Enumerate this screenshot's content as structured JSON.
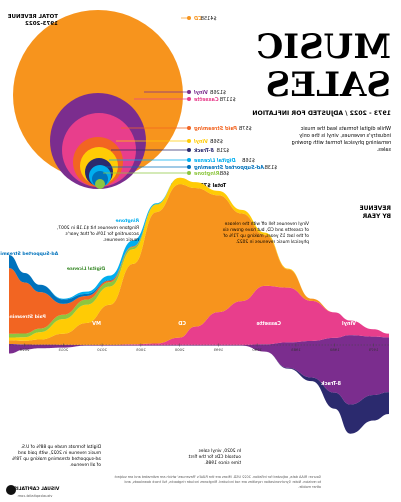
{
  "title": {
    "main": "MUSIC SALES",
    "subtitle": "1973 - 2022",
    "subtitle_sep": "/",
    "subtitle_note": "ADJUSTED FOR INFLATION",
    "intro": "While digital formats lead the music industry's revenues, vinyl is the only remaining physical format with growing sales."
  },
  "top_chart": {
    "label": "TOTAL REVENUE",
    "years": "1973-2022",
    "total_label": "Total",
    "total_value": "$774B",
    "bubbles": [
      {
        "name": "CD",
        "value": "$415B",
        "color": "#f7941d"
      },
      {
        "name": "Vinyl",
        "value": "$126B",
        "color": "#7b2d8e"
      },
      {
        "name": "Cassette",
        "value": "$117B",
        "color": "#e83e8c"
      },
      {
        "name": "Paid Streaming",
        "value": "$57B",
        "color": "#f26522"
      },
      {
        "name": "Vinyl",
        "value": "$56B",
        "color": "#ffcb05"
      },
      {
        "name": "8-Track",
        "value": "$21B",
        "color": "#2b2a6e"
      },
      {
        "name": "Digital License",
        "value": "$16B",
        "color": "#00aeef"
      },
      {
        "name": "Ad-Supported Streaming",
        "value": "$13B",
        "color": "#0072bc"
      },
      {
        "name": "Ringtone",
        "value": "$6B",
        "color": "#8dc63f"
      }
    ]
  },
  "stream_chart": {
    "label": "REVENUE",
    "label2": "BY YEAR",
    "colors": {
      "Vinyl": "#7b2d8e",
      "8-Track": "#2b2a6e",
      "Cassette": "#e83e8c",
      "CD": "#f7941d",
      "Other": "#ffcb05",
      "Digital": "#8dc63f",
      "Paid": "#f26522",
      "Ad": "#0072bc",
      "Sync": "#00aeef"
    },
    "x_ticks": [
      "1975",
      "1980",
      "1985",
      "1990",
      "1995",
      "2000",
      "2005",
      "2010",
      "2015",
      "2020"
    ],
    "labels": [
      {
        "text": "Vinyl"
      },
      {
        "text": "Cassette"
      },
      {
        "text": "8-Track"
      },
      {
        "text": "CD"
      },
      {
        "text": "MV"
      },
      {
        "text": "Paid Streaming"
      },
      {
        "text": "Ad-Supported Streaming"
      },
      {
        "text": "Digital License"
      },
      {
        "text": "Ringtone"
      }
    ],
    "annotations": [
      {
        "text": "Vinyl revenues fell off with the release of cassette and CD, but have grown six of the last 15 years, making up 71% of physical music revenues in 2022."
      },
      {
        "text": "Ringtone revenues hit $1.1B in 2007, accounting for 10% of that year's music revenues."
      },
      {
        "text": "In 2020, vinyl sales outsold CDs for the first time since 1986."
      },
      {
        "text": "Digital formats made up 88% of U.S. music revenue in 2022, with paid and ad-supported streaming making up 78% of all revenue."
      }
    ]
  },
  "footer": {
    "source": "Source: RIAA data, adjusted for inflation. 2022 USD. Mixes are the RIAA's 'Revenues' which are estimated and are subject to revision. Note: Synchronization royalties are not included. Ringtones include ringbacks, full track downloads, and other mobile.",
    "brand": "VISUAL CAPITALIST",
    "url": "visualcapitalist.com"
  },
  "chart_data": [
    {
      "type": "bubble",
      "title": "TOTAL REVENUE 1973-2022",
      "categories": [
        "CD",
        "Vinyl",
        "Cassette",
        "Paid Streaming",
        "Vinyl",
        "8-Track",
        "Digital License",
        "Ad-Supported Streaming",
        "Ringtone"
      ],
      "values": [
        415,
        126,
        117,
        57,
        56,
        21,
        16,
        13,
        6
      ],
      "unit": "$B",
      "total": 774
    },
    {
      "type": "area",
      "title": "REVENUE BY YEAR",
      "x": [
        1973,
        1975,
        1978,
        1980,
        1983,
        1986,
        1989,
        1992,
        1995,
        1998,
        2000,
        2003,
        2006,
        2009,
        2012,
        2015,
        2018,
        2020,
        2022
      ],
      "series": [
        {
          "name": "Vinyl",
          "values": [
            7.5,
            8.0,
            9.5,
            7.5,
            5.0,
            3.5,
            1.0,
            0.1,
            0.1,
            0.1,
            0.1,
            0.1,
            0.1,
            0.1,
            0.1,
            0.4,
            0.5,
            0.7,
            1.3
          ]
        },
        {
          "name": "8-Track",
          "values": [
            3.0,
            3.5,
            4.0,
            2.2,
            0.5,
            0.1,
            0,
            0,
            0,
            0,
            0,
            0,
            0,
            0,
            0,
            0,
            0,
            0,
            0
          ]
        },
        {
          "name": "Cassette",
          "values": [
            0.5,
            1.0,
            2.0,
            3.5,
            5.5,
            7.5,
            8.0,
            6.0,
            4.5,
            2.5,
            1.0,
            0.2,
            0.1,
            0,
            0,
            0,
            0,
            0,
            0
          ]
        },
        {
          "name": "CD",
          "values": [
            0,
            0,
            0,
            0,
            0.3,
            2.5,
            7.0,
            12.0,
            16.0,
            19.0,
            21.0,
            18.0,
            11.0,
            5.5,
            3.0,
            1.5,
            0.7,
            0.5,
            0.5
          ]
        },
        {
          "name": "Other",
          "values": [
            0,
            0,
            0,
            0,
            0,
            0.1,
            0.3,
            0.5,
            0.6,
            0.8,
            0.9,
            1.0,
            2.0,
            2.5,
            2.5,
            2.0,
            1.0,
            0.5,
            0.4
          ]
        },
        {
          "name": "Digital License",
          "values": [
            0,
            0,
            0,
            0,
            0,
            0,
            0,
            0,
            0,
            0,
            0,
            0.1,
            0.3,
            0.6,
            0.7,
            0.6,
            0.5,
            0.5,
            0.5
          ]
        },
        {
          "name": "Paid Streaming",
          "values": [
            0,
            0,
            0,
            0,
            0,
            0,
            0,
            0,
            0,
            0,
            0,
            0,
            0.1,
            0.2,
            0.5,
            1.5,
            5.0,
            7.0,
            9.0
          ]
        },
        {
          "name": "Ad-Supported Streaming",
          "values": [
            0,
            0,
            0,
            0,
            0,
            0,
            0,
            0,
            0,
            0,
            0,
            0,
            0,
            0.1,
            0.3,
            0.6,
            1.0,
            1.3,
            1.8
          ]
        },
        {
          "name": "Ringtone",
          "values": [
            0,
            0,
            0,
            0,
            0,
            0,
            0,
            0,
            0,
            0,
            0,
            0.1,
            0.8,
            0.6,
            0.3,
            0.1,
            0,
            0,
            0
          ]
        }
      ],
      "unit": "$B"
    }
  ]
}
